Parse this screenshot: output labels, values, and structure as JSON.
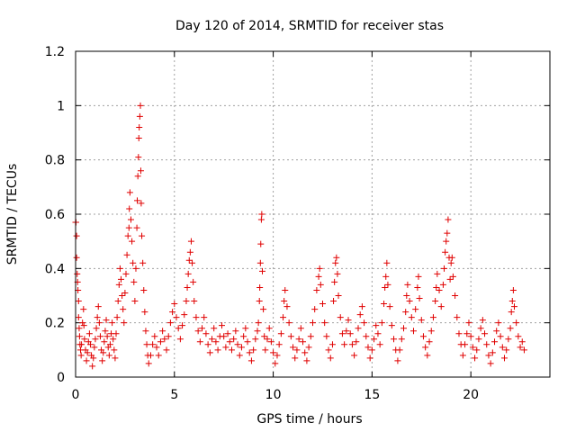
{
  "chart_data": {
    "type": "scatter",
    "title": "Day 120 of 2014, SRMTID for receiver stas",
    "xlabel": "GPS time / hours",
    "ylabel": "SRMTID / TECUs",
    "xlim": [
      0,
      24
    ],
    "ylim": [
      0,
      1.2
    ],
    "xticks": [
      0,
      5,
      10,
      15,
      20
    ],
    "xtick_labels": [
      "0",
      "5",
      "10",
      "15",
      "20"
    ],
    "yticks": [
      0,
      0.2,
      0.4,
      0.6,
      0.8,
      1.0,
      1.2
    ],
    "ytick_labels": [
      "0",
      "0.2",
      "0.4",
      "0.6",
      "0.8",
      "1",
      "1.2"
    ],
    "grid": true,
    "marker": "+",
    "color": "#e00000",
    "series": [
      {
        "name": "SRMTID",
        "points": [
          [
            0.0,
            0.57
          ],
          [
            0.02,
            0.57
          ],
          [
            0.05,
            0.52
          ],
          [
            0.05,
            0.44
          ],
          [
            0.08,
            0.38
          ],
          [
            0.1,
            0.35
          ],
          [
            0.12,
            0.32
          ],
          [
            0.15,
            0.28
          ],
          [
            0.15,
            0.22
          ],
          [
            0.18,
            0.18
          ],
          [
            0.2,
            0.15
          ],
          [
            0.22,
            0.12
          ],
          [
            0.25,
            0.1
          ],
          [
            0.28,
            0.08
          ],
          [
            0.3,
            0.12
          ],
          [
            0.35,
            0.2
          ],
          [
            0.4,
            0.25
          ],
          [
            0.42,
            0.19
          ],
          [
            0.45,
            0.14
          ],
          [
            0.5,
            0.1
          ],
          [
            0.55,
            0.06
          ],
          [
            0.6,
            0.09
          ],
          [
            0.65,
            0.13
          ],
          [
            0.7,
            0.16
          ],
          [
            0.75,
            0.12
          ],
          [
            0.8,
            0.08
          ],
          [
            0.85,
            0.04
          ],
          [
            0.9,
            0.07
          ],
          [
            0.95,
            0.11
          ],
          [
            1.0,
            0.14
          ],
          [
            1.05,
            0.18
          ],
          [
            1.1,
            0.22
          ],
          [
            1.15,
            0.26
          ],
          [
            1.2,
            0.2
          ],
          [
            1.25,
            0.15
          ],
          [
            1.3,
            0.1
          ],
          [
            1.35,
            0.06
          ],
          [
            1.4,
            0.09
          ],
          [
            1.45,
            0.13
          ],
          [
            1.5,
            0.17
          ],
          [
            1.55,
            0.21
          ],
          [
            1.6,
            0.15
          ],
          [
            1.65,
            0.11
          ],
          [
            1.7,
            0.08
          ],
          [
            1.75,
            0.12
          ],
          [
            1.8,
            0.16
          ],
          [
            1.85,
            0.2
          ],
          [
            1.9,
            0.14
          ],
          [
            1.95,
            0.1
          ],
          [
            2.0,
            0.07
          ],
          [
            2.05,
            0.16
          ],
          [
            2.1,
            0.22
          ],
          [
            2.15,
            0.28
          ],
          [
            2.2,
            0.34
          ],
          [
            2.25,
            0.4
          ],
          [
            2.3,
            0.36
          ],
          [
            2.35,
            0.3
          ],
          [
            2.4,
            0.25
          ],
          [
            2.45,
            0.2
          ],
          [
            2.5,
            0.31
          ],
          [
            2.55,
            0.38
          ],
          [
            2.6,
            0.45
          ],
          [
            2.65,
            0.52
          ],
          [
            2.7,
            0.55
          ],
          [
            2.72,
            0.62
          ],
          [
            2.75,
            0.68
          ],
          [
            2.8,
            0.58
          ],
          [
            2.85,
            0.5
          ],
          [
            2.9,
            0.42
          ],
          [
            2.95,
            0.35
          ],
          [
            3.0,
            0.28
          ],
          [
            3.05,
            0.4
          ],
          [
            3.1,
            0.55
          ],
          [
            3.12,
            0.65
          ],
          [
            3.15,
            0.74
          ],
          [
            3.18,
            0.81
          ],
          [
            3.2,
            0.88
          ],
          [
            3.22,
            0.92
          ],
          [
            3.25,
            0.96
          ],
          [
            3.28,
            1.0
          ],
          [
            3.3,
            0.76
          ],
          [
            3.32,
            0.64
          ],
          [
            3.35,
            0.52
          ],
          [
            3.4,
            0.42
          ],
          [
            3.45,
            0.32
          ],
          [
            3.5,
            0.24
          ],
          [
            3.55,
            0.17
          ],
          [
            3.6,
            0.12
          ],
          [
            3.65,
            0.08
          ],
          [
            3.7,
            0.05
          ],
          [
            3.8,
            0.08
          ],
          [
            3.9,
            0.12
          ],
          [
            4.0,
            0.15
          ],
          [
            4.1,
            0.11
          ],
          [
            4.2,
            0.08
          ],
          [
            4.3,
            0.13
          ],
          [
            4.4,
            0.17
          ],
          [
            4.5,
            0.14
          ],
          [
            4.6,
            0.1
          ],
          [
            4.7,
            0.15
          ],
          [
            4.8,
            0.2
          ],
          [
            4.9,
            0.24
          ],
          [
            5.0,
            0.27
          ],
          [
            5.1,
            0.22
          ],
          [
            5.2,
            0.18
          ],
          [
            5.3,
            0.14
          ],
          [
            5.4,
            0.19
          ],
          [
            5.5,
            0.23
          ],
          [
            5.6,
            0.28
          ],
          [
            5.65,
            0.33
          ],
          [
            5.7,
            0.38
          ],
          [
            5.75,
            0.43
          ],
          [
            5.8,
            0.46
          ],
          [
            5.85,
            0.5
          ],
          [
            5.9,
            0.42
          ],
          [
            5.95,
            0.35
          ],
          [
            6.0,
            0.28
          ],
          [
            6.1,
            0.22
          ],
          [
            6.2,
            0.17
          ],
          [
            6.3,
            0.13
          ],
          [
            6.4,
            0.18
          ],
          [
            6.5,
            0.22
          ],
          [
            6.6,
            0.16
          ],
          [
            6.7,
            0.12
          ],
          [
            6.8,
            0.09
          ],
          [
            6.9,
            0.14
          ],
          [
            7.0,
            0.18
          ],
          [
            7.1,
            0.13
          ],
          [
            7.2,
            0.1
          ],
          [
            7.3,
            0.15
          ],
          [
            7.4,
            0.19
          ],
          [
            7.5,
            0.15
          ],
          [
            7.6,
            0.11
          ],
          [
            7.7,
            0.16
          ],
          [
            7.8,
            0.13
          ],
          [
            7.9,
            0.1
          ],
          [
            8.0,
            0.14
          ],
          [
            8.1,
            0.17
          ],
          [
            8.2,
            0.12
          ],
          [
            8.3,
            0.08
          ],
          [
            8.4,
            0.11
          ],
          [
            8.5,
            0.15
          ],
          [
            8.6,
            0.18
          ],
          [
            8.7,
            0.13
          ],
          [
            8.8,
            0.09
          ],
          [
            8.9,
            0.06
          ],
          [
            9.0,
            0.1
          ],
          [
            9.1,
            0.14
          ],
          [
            9.2,
            0.17
          ],
          [
            9.25,
            0.2
          ],
          [
            9.3,
            0.28
          ],
          [
            9.32,
            0.33
          ],
          [
            9.35,
            0.42
          ],
          [
            9.37,
            0.49
          ],
          [
            9.4,
            0.58
          ],
          [
            9.42,
            0.6
          ],
          [
            9.45,
            0.39
          ],
          [
            9.5,
            0.25
          ],
          [
            9.55,
            0.15
          ],
          [
            9.6,
            0.1
          ],
          [
            9.7,
            0.14
          ],
          [
            9.8,
            0.18
          ],
          [
            9.9,
            0.13
          ],
          [
            10.0,
            0.09
          ],
          [
            10.1,
            0.05
          ],
          [
            10.2,
            0.08
          ],
          [
            10.3,
            0.12
          ],
          [
            10.4,
            0.16
          ],
          [
            10.5,
            0.22
          ],
          [
            10.55,
            0.28
          ],
          [
            10.6,
            0.32
          ],
          [
            10.7,
            0.26
          ],
          [
            10.8,
            0.2
          ],
          [
            10.9,
            0.15
          ],
          [
            11.0,
            0.11
          ],
          [
            11.1,
            0.07
          ],
          [
            11.2,
            0.1
          ],
          [
            11.3,
            0.14
          ],
          [
            11.4,
            0.18
          ],
          [
            11.5,
            0.13
          ],
          [
            11.6,
            0.09
          ],
          [
            11.7,
            0.06
          ],
          [
            11.8,
            0.11
          ],
          [
            11.9,
            0.15
          ],
          [
            12.0,
            0.2
          ],
          [
            12.1,
            0.25
          ],
          [
            12.2,
            0.32
          ],
          [
            12.3,
            0.37
          ],
          [
            12.35,
            0.4
          ],
          [
            12.4,
            0.34
          ],
          [
            12.5,
            0.27
          ],
          [
            12.6,
            0.2
          ],
          [
            12.7,
            0.15
          ],
          [
            12.8,
            0.1
          ],
          [
            12.9,
            0.07
          ],
          [
            13.0,
            0.12
          ],
          [
            13.05,
            0.28
          ],
          [
            13.1,
            0.35
          ],
          [
            13.15,
            0.42
          ],
          [
            13.2,
            0.44
          ],
          [
            13.25,
            0.38
          ],
          [
            13.3,
            0.3
          ],
          [
            13.4,
            0.22
          ],
          [
            13.5,
            0.16
          ],
          [
            13.6,
            0.12
          ],
          [
            13.7,
            0.17
          ],
          [
            13.8,
            0.21
          ],
          [
            13.9,
            0.16
          ],
          [
            14.0,
            0.12
          ],
          [
            14.1,
            0.08
          ],
          [
            14.2,
            0.13
          ],
          [
            14.3,
            0.18
          ],
          [
            14.4,
            0.23
          ],
          [
            14.5,
            0.26
          ],
          [
            14.6,
            0.2
          ],
          [
            14.7,
            0.15
          ],
          [
            14.8,
            0.11
          ],
          [
            14.9,
            0.07
          ],
          [
            15.0,
            0.1
          ],
          [
            15.1,
            0.14
          ],
          [
            15.2,
            0.19
          ],
          [
            15.3,
            0.16
          ],
          [
            15.4,
            0.12
          ],
          [
            15.5,
            0.2
          ],
          [
            15.6,
            0.27
          ],
          [
            15.65,
            0.33
          ],
          [
            15.7,
            0.37
          ],
          [
            15.75,
            0.42
          ],
          [
            15.8,
            0.34
          ],
          [
            15.9,
            0.26
          ],
          [
            16.0,
            0.19
          ],
          [
            16.1,
            0.14
          ],
          [
            16.2,
            0.1
          ],
          [
            16.3,
            0.06
          ],
          [
            16.4,
            0.1
          ],
          [
            16.5,
            0.14
          ],
          [
            16.6,
            0.18
          ],
          [
            16.7,
            0.24
          ],
          [
            16.75,
            0.3
          ],
          [
            16.8,
            0.34
          ],
          [
            16.9,
            0.28
          ],
          [
            17.0,
            0.22
          ],
          [
            17.1,
            0.17
          ],
          [
            17.2,
            0.25
          ],
          [
            17.3,
            0.33
          ],
          [
            17.35,
            0.37
          ],
          [
            17.4,
            0.29
          ],
          [
            17.5,
            0.21
          ],
          [
            17.6,
            0.15
          ],
          [
            17.7,
            0.11
          ],
          [
            17.8,
            0.08
          ],
          [
            17.9,
            0.13
          ],
          [
            18.0,
            0.17
          ],
          [
            18.1,
            0.22
          ],
          [
            18.2,
            0.28
          ],
          [
            18.25,
            0.33
          ],
          [
            18.3,
            0.38
          ],
          [
            18.4,
            0.32
          ],
          [
            18.5,
            0.26
          ],
          [
            18.6,
            0.34
          ],
          [
            18.65,
            0.4
          ],
          [
            18.7,
            0.46
          ],
          [
            18.75,
            0.5
          ],
          [
            18.8,
            0.53
          ],
          [
            18.85,
            0.58
          ],
          [
            18.9,
            0.44
          ],
          [
            18.95,
            0.36
          ],
          [
            19.0,
            0.42
          ],
          [
            19.05,
            0.44
          ],
          [
            19.1,
            0.37
          ],
          [
            19.2,
            0.3
          ],
          [
            19.3,
            0.22
          ],
          [
            19.4,
            0.16
          ],
          [
            19.5,
            0.12
          ],
          [
            19.6,
            0.08
          ],
          [
            19.7,
            0.12
          ],
          [
            19.8,
            0.16
          ],
          [
            19.9,
            0.2
          ],
          [
            20.0,
            0.15
          ],
          [
            20.1,
            0.11
          ],
          [
            20.2,
            0.07
          ],
          [
            20.3,
            0.1
          ],
          [
            20.4,
            0.14
          ],
          [
            20.5,
            0.18
          ],
          [
            20.6,
            0.21
          ],
          [
            20.7,
            0.16
          ],
          [
            20.8,
            0.12
          ],
          [
            20.9,
            0.08
          ],
          [
            21.0,
            0.05
          ],
          [
            21.1,
            0.09
          ],
          [
            21.2,
            0.13
          ],
          [
            21.3,
            0.17
          ],
          [
            21.4,
            0.2
          ],
          [
            21.5,
            0.15
          ],
          [
            21.6,
            0.11
          ],
          [
            21.7,
            0.07
          ],
          [
            21.8,
            0.1
          ],
          [
            21.9,
            0.14
          ],
          [
            22.0,
            0.18
          ],
          [
            22.05,
            0.24
          ],
          [
            22.1,
            0.28
          ],
          [
            22.15,
            0.32
          ],
          [
            22.2,
            0.26
          ],
          [
            22.3,
            0.2
          ],
          [
            22.4,
            0.15
          ],
          [
            22.5,
            0.11
          ],
          [
            22.6,
            0.13
          ],
          [
            22.7,
            0.1
          ]
        ]
      }
    ]
  }
}
